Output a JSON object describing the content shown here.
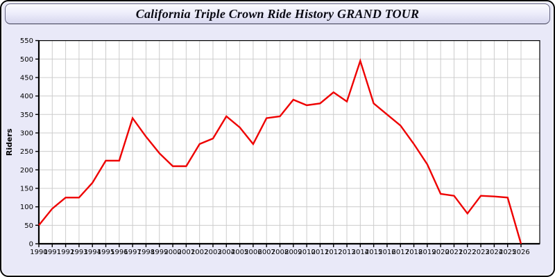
{
  "window": {
    "title": "California Triple Crown Ride History GRAND TOUR"
  },
  "colors": {
    "line": "#ee0000",
    "panel_bg": "#e9e9f8",
    "plot_bg": "#ffffff",
    "grid": "#cccccc",
    "axis": "#000000",
    "titlebar_top": "#fbfbfe",
    "titlebar_bottom": "#d6d6ee",
    "outer_border": "#000000"
  },
  "chart_data": {
    "type": "line",
    "title": "California Triple Crown Ride History GRAND TOUR",
    "xlabel": "",
    "ylabel": "Riders",
    "x": [
      1990,
      1991,
      1992,
      1993,
      1994,
      1995,
      1996,
      1997,
      1998,
      1999,
      2000,
      2001,
      2002,
      2003,
      2004,
      2005,
      2006,
      2007,
      2008,
      2009,
      2010,
      2011,
      2012,
      2013,
      2014,
      2015,
      2016,
      2017,
      2018,
      2019,
      2020,
      2021,
      2022,
      2023,
      2024,
      2025,
      2026
    ],
    "series": [
      {
        "name": "Riders",
        "color": "#ee0000",
        "values": [
          50,
          95,
          125,
          125,
          165,
          225,
          225,
          340,
          290,
          245,
          210,
          210,
          270,
          285,
          345,
          315,
          270,
          340,
          345,
          390,
          375,
          380,
          410,
          385,
          495,
          380,
          350,
          320,
          270,
          215,
          135,
          130,
          82,
          130,
          128,
          125,
          0
        ]
      }
    ],
    "ylim": [
      0,
      550
    ],
    "ytick_interval": 50,
    "grid": true,
    "legend": "none"
  }
}
